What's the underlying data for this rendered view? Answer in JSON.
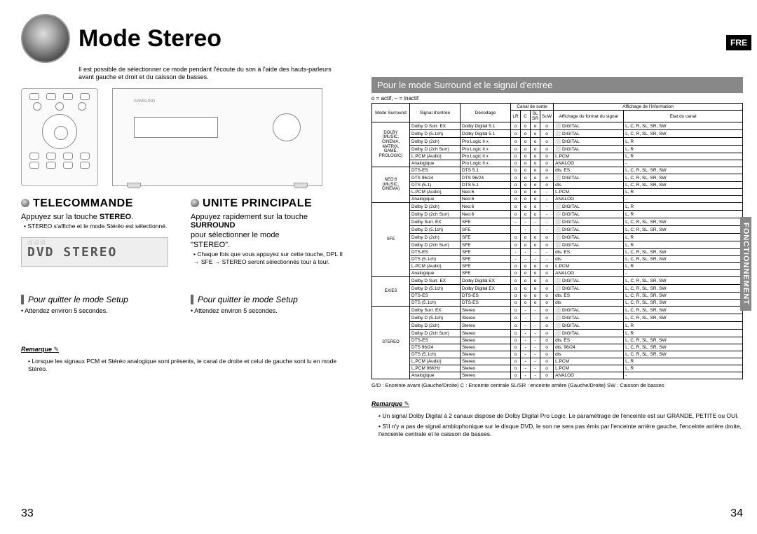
{
  "badge": "FRE",
  "vert": "FONCTIONNEMENT",
  "title": "Mode Stereo",
  "subtitle": "Il est possible de sélectionner ce mode pendant l'écoute du son à l'aide des hauts-parleurs avant gauche et droit et du caisson de basses.",
  "mu_brand": "SAMSUNG",
  "sec_tele": {
    "h": "TELECOMMANDE",
    "sub_pre": "Appuyez sur la touche ",
    "sub_bold": "STEREO",
    "sub_post": ".",
    "bullet": "STEREO s'affiche et le mode Stéréo est sélectionné."
  },
  "sec_unite": {
    "h": "UNITE PRINCIPALE",
    "sub_pre": "Appuyez rapidement sur la touche ",
    "sub_bold": "SURROUND",
    "sub_line2": "pour sélectionner le mode",
    "sub_line3": "\"STEREO\".",
    "bullet": "Chaque fois que vous appuyez sur cette touche, DPL II → SFE → STEREO seront sélectionnés tour à tour."
  },
  "lcd": {
    "top": "⬜ ⬜         ⬜",
    "main": "DVD STEREO"
  },
  "quitter": {
    "h": "Pour quitter le mode Setup",
    "b": "Attendez environ 5 secondes."
  },
  "remarque_left": {
    "h": "Remarque",
    "b": "Lorsque les signaux PCM et Stéréo analogique sont présents, le canal de droite et celui de gauche sont lu en mode Stéréo."
  },
  "page_left": "33",
  "page_right": "34",
  "right_h": "Pour le mode Surround et le signal d'entree",
  "legend": "o = actif, – = inactif",
  "th": {
    "mode": "Mode Surround",
    "signal": "Signal d'entrée",
    "decodage": "Décodage",
    "canal": "Canal de sortie",
    "lr": "LR",
    "c": "C",
    "slsr": "SL SR",
    "suw": "SuW",
    "affinfo": "Affichage de l'information",
    "affformat": "Affichage du format du signal",
    "etat": "Etat du canal"
  },
  "modes": {
    "dolby": "DOLBY\n(MUSIC,\nCINEMA,\nMATRIX,\nGAME,\nPROLOGIC)",
    "neo6": "NEO:6\n(MUSIC,\nCINEMA)",
    "sfe": "SFE",
    "exes": "EX/ES",
    "stereo": "STEREO"
  },
  "rows": [
    {
      "m": "dolby",
      "s": "Dolby D Surr. EX",
      "d": "Dolby Digital 5.1",
      "c": [
        "o",
        "o",
        "o",
        "o"
      ],
      "f": "⬜ DIGITAL",
      "e": "L, C, R, SL, SR, SW"
    },
    {
      "m": "dolby",
      "s": "Dolby D (5.1ch)",
      "d": "Dolby Digital 5.1",
      "c": [
        "o",
        "o",
        "o",
        "o"
      ],
      "f": "⬜ DIGITAL",
      "e": "L, C, R, SL, SR, SW"
    },
    {
      "m": "dolby",
      "s": "Dolby D (2ch)",
      "d": "Pro Logic II x",
      "c": [
        "o",
        "o",
        "o",
        "o"
      ],
      "f": "⬜ DIGITAL",
      "e": "L, R"
    },
    {
      "m": "dolby",
      "s": "Dolby D (2ch Surr)",
      "d": "Pro Logic II x",
      "c": [
        "o",
        "o",
        "o",
        "o"
      ],
      "f": "⬜ DIGITAL",
      "e": "L, R"
    },
    {
      "m": "dolby",
      "s": "L.PCM (Audio)",
      "d": "Pro Logic II x",
      "c": [
        "o",
        "o",
        "o",
        "o"
      ],
      "f": "L.PCM",
      "e": "L, R"
    },
    {
      "m": "dolby",
      "s": "Analogique",
      "d": "Pro Logic II x",
      "c": [
        "o",
        "o",
        "o",
        "o"
      ],
      "f": "ANALOG",
      "e": "-"
    },
    {
      "m": "neo6",
      "s": "DTS-ES",
      "d": "DTS 5.1",
      "c": [
        "o",
        "o",
        "o",
        "o"
      ],
      "f": "dts. ES",
      "e": "L, C, R, SL, SR, SW"
    },
    {
      "m": "neo6",
      "s": "DTS 96/24",
      "d": "DTS 96/24",
      "c": [
        "o",
        "o",
        "o",
        "o"
      ],
      "f": "⬜ DIGITAL",
      "e": "L, C, R, SL, SR, SW"
    },
    {
      "m": "neo6",
      "s": "DTS (5.1)",
      "d": "DTS 5.1",
      "c": [
        "o",
        "o",
        "o",
        "o"
      ],
      "f": "dts",
      "e": "L, C, R, SL, SR, SW"
    },
    {
      "m": "neo6",
      "s": "L.PCM (Audio)",
      "d": "Neo:6",
      "c": [
        "o",
        "o",
        "o",
        "-"
      ],
      "f": "L.PCM",
      "e": "L, R"
    },
    {
      "m": "neo6",
      "s": "Analogique",
      "d": "Neo:6",
      "c": [
        "o",
        "o",
        "o",
        "-"
      ],
      "f": "ANALOG",
      "e": "-"
    },
    {
      "m": "sfe",
      "s": "Dolby D (2ch)",
      "d": "Neo:6",
      "c": [
        "o",
        "o",
        "o",
        "-"
      ],
      "f": "⬜ DIGITAL",
      "e": "L, R"
    },
    {
      "m": "sfe",
      "s": "Dolby D (2ch Surr)",
      "d": "Neo:6",
      "c": [
        "o",
        "o",
        "o",
        "-"
      ],
      "f": "⬜ DIGITAL",
      "e": "L, R"
    },
    {
      "m": "sfe",
      "s": "Dolby Surr. EX",
      "d": "SFE",
      "c": [
        "-",
        "-",
        "-",
        "-"
      ],
      "f": "⬜ DIGITAL",
      "e": "L, C, R, SL, SR, SW"
    },
    {
      "m": "sfe",
      "s": "Dolby D (5.1ch)",
      "d": "SFE",
      "c": [
        "-",
        "-",
        "-",
        "-"
      ],
      "f": "⬜ DIGITAL",
      "e": "L, C, R, SL, SR, SW"
    },
    {
      "m": "sfe",
      "s": "Dolby D (2ch)",
      "d": "SFE",
      "c": [
        "o",
        "o",
        "o",
        "o"
      ],
      "f": "⬜ DIGITAL",
      "e": "L, R"
    },
    {
      "m": "sfe",
      "s": "Dolby D (2ch Surr)",
      "d": "SFE",
      "c": [
        "o",
        "o",
        "o",
        "o"
      ],
      "f": "⬜ DIGITAL",
      "e": "L, R"
    },
    {
      "m": "sfe",
      "s": "DTS-ES",
      "d": "SFE",
      "c": [
        "-",
        "-",
        "-",
        "-"
      ],
      "f": "dts. ES",
      "e": "L, C, R, SL, SR, SW"
    },
    {
      "m": "sfe",
      "s": "DTS (5.1ch)",
      "d": "SFE",
      "c": [
        "-",
        "-",
        "-",
        "-"
      ],
      "f": "dts",
      "e": "L, C, R, SL, SR, SW"
    },
    {
      "m": "sfe",
      "s": "L.PCM (Audio)",
      "d": "SFE",
      "c": [
        "o",
        "o",
        "o",
        "o"
      ],
      "f": "L.PCM",
      "e": "L, R"
    },
    {
      "m": "sfe",
      "s": "Analogique",
      "d": "SFE",
      "c": [
        "o",
        "o",
        "o",
        "o"
      ],
      "f": "ANALOG",
      "e": "-"
    },
    {
      "m": "exes",
      "s": "Dolby D Surr. EX",
      "d": "Dolby Digital EX",
      "c": [
        "o",
        "o",
        "o",
        "o"
      ],
      "f": "⬜ DIGITAL",
      "e": "L, C, R, SL, SR, SW"
    },
    {
      "m": "exes",
      "s": "Dolby D (5.1ch)",
      "d": "Dolby Digital EX",
      "c": [
        "o",
        "o",
        "o",
        "o"
      ],
      "f": "⬜ DIGITAL",
      "e": "L, C, R, SL, SR, SW"
    },
    {
      "m": "exes",
      "s": "DTS-ES",
      "d": "DTS-ES",
      "c": [
        "o",
        "o",
        "o",
        "o"
      ],
      "f": "dts. ES",
      "e": "L, C, R, SL, SR, SW"
    },
    {
      "m": "exes",
      "s": "DTS (5.1ch)",
      "d": "DTS-ES",
      "c": [
        "o",
        "o",
        "o",
        "o"
      ],
      "f": "dts",
      "e": "L, C, R, SL, SR, SW"
    },
    {
      "m": "stereo",
      "s": "Dolby Surr. EX",
      "d": "Stereo",
      "c": [
        "o",
        "-",
        "-",
        "o"
      ],
      "f": "⬜ DIGITAL",
      "e": "L, C, R, SL, SR, SW"
    },
    {
      "m": "stereo",
      "s": "Dolby D (5.1ch)",
      "d": "Stereo",
      "c": [
        "o",
        "-",
        "-",
        "o"
      ],
      "f": "⬜ DIGITAL",
      "e": "L, C, R, SL, SR, SW"
    },
    {
      "m": "stereo",
      "s": "Dolby D (2ch)",
      "d": "Stereo",
      "c": [
        "o",
        "-",
        "-",
        "o"
      ],
      "f": "⬜ DIGITAL",
      "e": "L, R"
    },
    {
      "m": "stereo",
      "s": "Dolby D (2ch Surr)",
      "d": "Stereo",
      "c": [
        "o",
        "-",
        "-",
        "o"
      ],
      "f": "⬜ DIGITAL",
      "e": "L, R"
    },
    {
      "m": "stereo",
      "s": "DTS-ES",
      "d": "Stereo",
      "c": [
        "o",
        "-",
        "-",
        "o"
      ],
      "f": "dts. ES",
      "e": "L, C, R, SL, SR, SW"
    },
    {
      "m": "stereo",
      "s": "DTS 96/24",
      "d": "Stereo",
      "c": [
        "o",
        "-",
        "-",
        "o"
      ],
      "f": "dts. 96/24",
      "e": "L, C, R, SL, SR, SW"
    },
    {
      "m": "stereo",
      "s": "DTS (5.1ch)",
      "d": "Stereo",
      "c": [
        "o",
        "-",
        "-",
        "o"
      ],
      "f": "dts",
      "e": "L, C, R, SL, SR, SW"
    },
    {
      "m": "stereo",
      "s": "L.PCM (Audio)",
      "d": "Stereo",
      "c": [
        "o",
        "-",
        "-",
        "o"
      ],
      "f": "L.PCM",
      "e": "L, R"
    },
    {
      "m": "stereo",
      "s": "L.PCM 96KHz",
      "d": "Stereo",
      "c": [
        "o",
        "-",
        "-",
        "o"
      ],
      "f": "L.PCM",
      "e": "L, R"
    },
    {
      "m": "stereo",
      "s": "Analogique",
      "d": "Stereo",
      "c": [
        "o",
        "-",
        "-",
        "o"
      ],
      "f": "ANALOG",
      "e": "-"
    }
  ],
  "footnote": "G/D : Enceinte avant (Gauche/Droite)   C : Enceinte centrale   SL/SR : enceinte arrière (Gauche/Droite)   SW : Caisson de basses",
  "remarque_right": {
    "h": "Remarque",
    "b1": "Un signal Dolby Digital à 2 canaux dispose de Dolby Digital Pro Logic. Le paramétrage de l'enceinte est sur GRANDE, PETITE ou OUI.",
    "b2": "S'il n'y a pas de signal ambiophonique sur le disque DVD, le son ne sera pas émis par l'enceinte arrière gauche, l'enceinte arrière droite, l'enceinte centrale et le caisson de basses."
  }
}
